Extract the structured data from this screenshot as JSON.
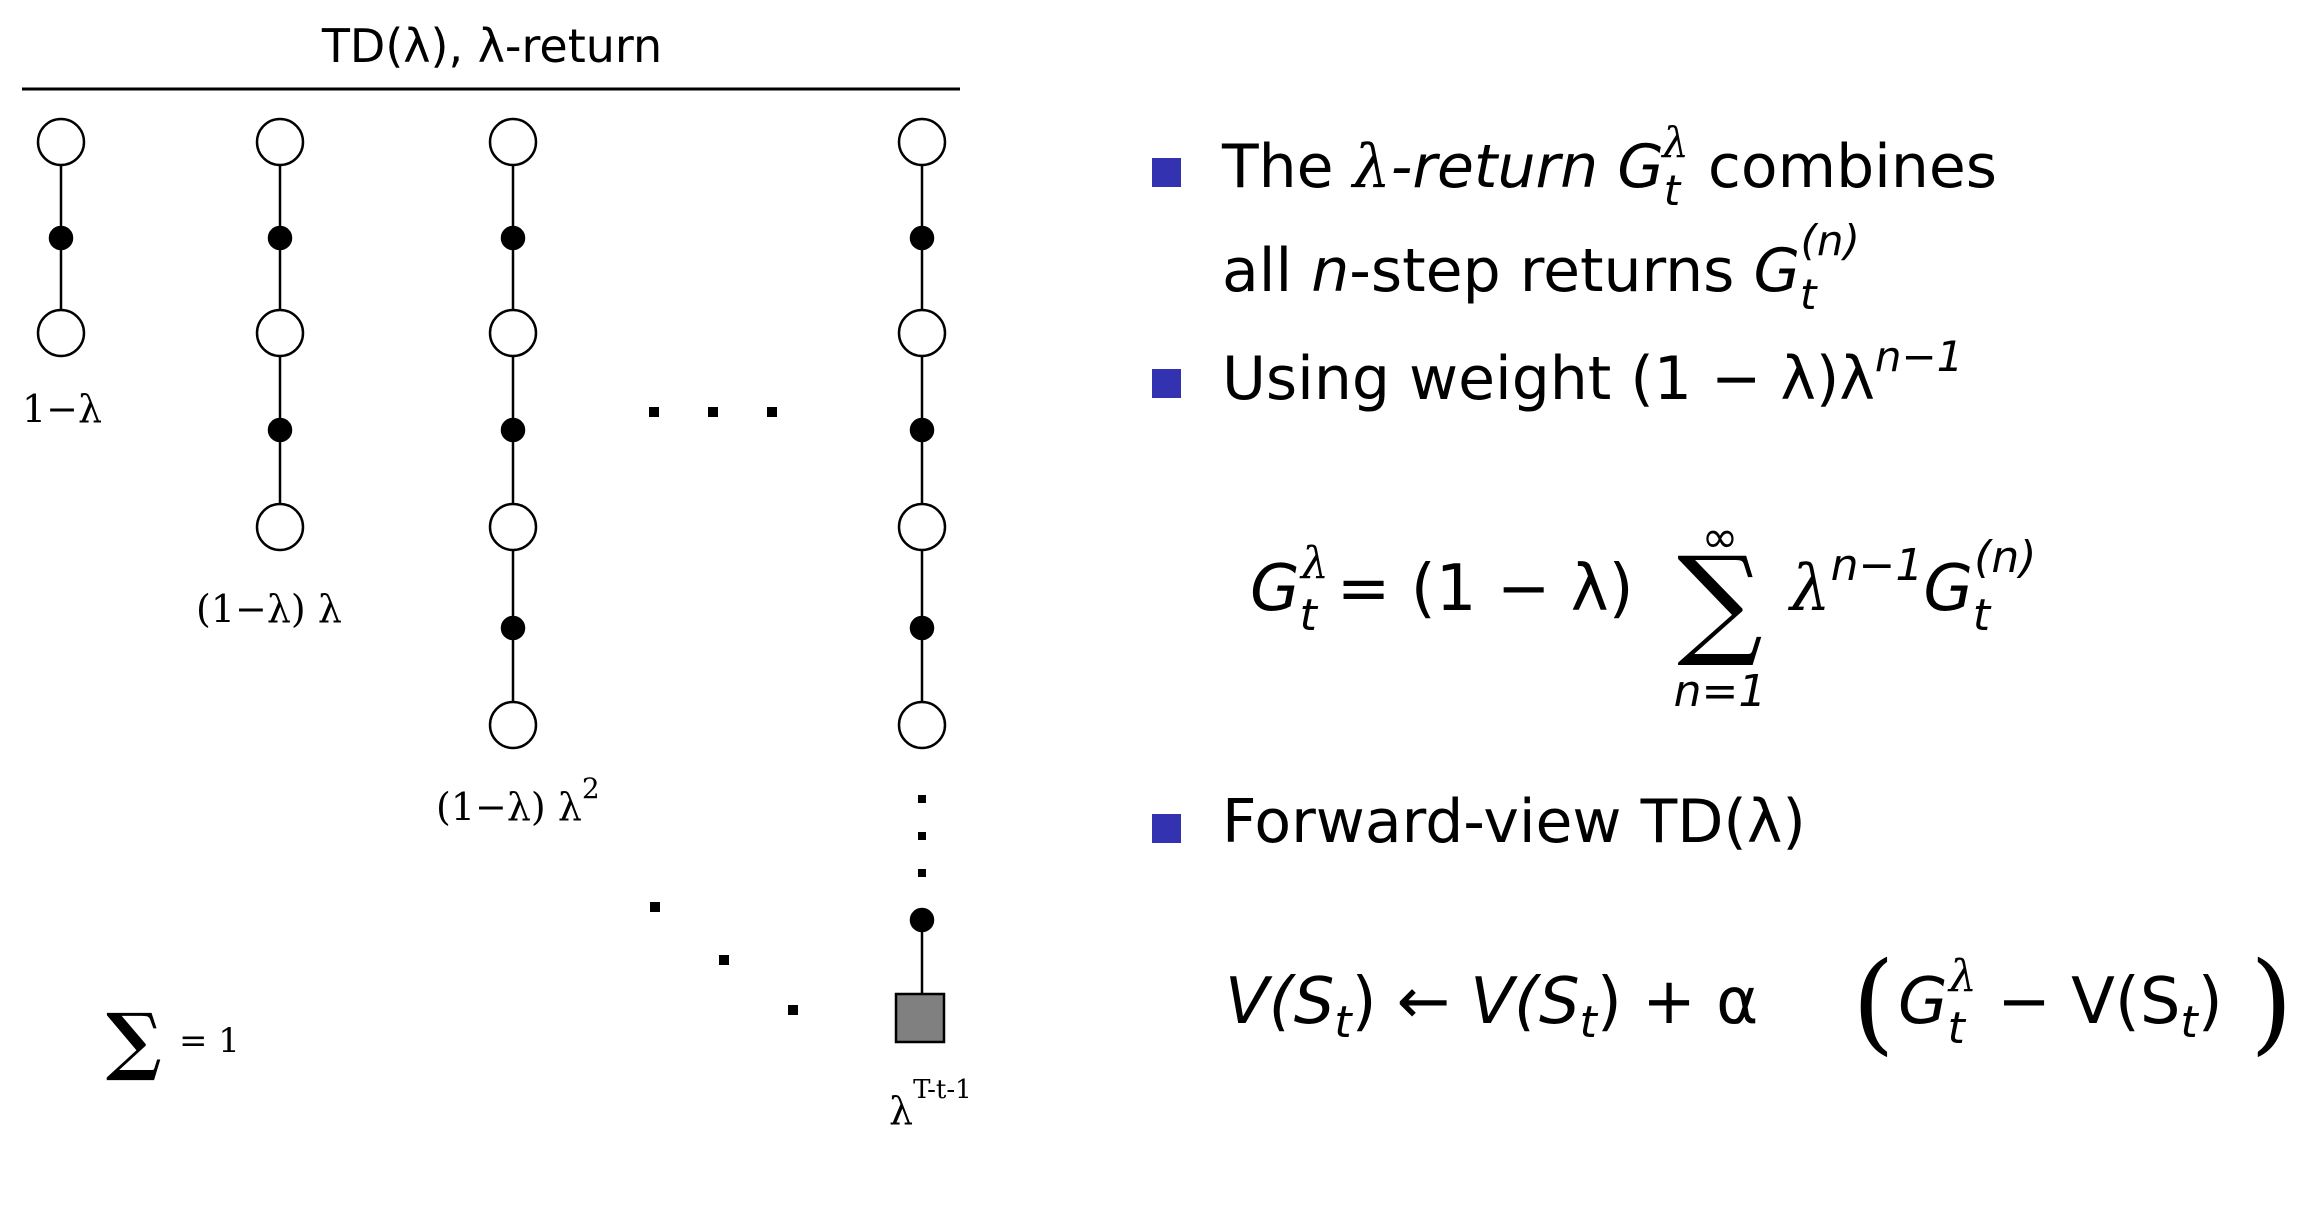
{
  "diagram": {
    "title": "TD(λ), λ-return",
    "column_weights": [
      "1−λ",
      "(1−λ) λ",
      "(1−λ) λ",
      "λ"
    ],
    "column_weight_powers": [
      "",
      "",
      "2",
      "T-t-1"
    ],
    "sum_label": "= 1",
    "sum_symbol": "∑"
  },
  "bullets": [
    {
      "pre": "The ",
      "lambda": "λ",
      "italic": "-return ",
      "G": "G",
      "sub": "t",
      "sup": "λ",
      "post": " combines"
    },
    {
      "pre": "all ",
      "italic": "n",
      "mid": "-step returns ",
      "G": "G",
      "sub": "t",
      "sup": "(n)"
    },
    {
      "pre": "Using weight (1 − λ)λ",
      "sup": "n−1"
    },
    {
      "pre": "Forward-view TD(λ)"
    }
  ],
  "equations": {
    "lambda_return": {
      "G": "G",
      "sub": "t",
      "sup": "λ",
      "rhs_pre": "= (1 − λ)",
      "sum": "∑",
      "sum_top": "∞",
      "sum_bottom": "n=1",
      "rhs_post": "λ",
      "rhs_post_sup": "n−1",
      "G2": "G",
      "sub2": "t",
      "sup2": "(n)"
    },
    "forward_view": {
      "lhs": "V(S",
      "lhs_sub": "t",
      "lhs_close": ")",
      "arrow": "←",
      "r1": "V(S",
      "r1_sub": "t",
      "r1_close": ") + α",
      "open": "(",
      "G": "G",
      "sub": "t",
      "sup": "λ",
      "minus": " − V(S",
      "m_sub": "t",
      "m_close": ")",
      "close": ")"
    }
  },
  "colors": {
    "bullet": "#3333b2",
    "stroke": "#000000",
    "terminal": "#808080"
  }
}
